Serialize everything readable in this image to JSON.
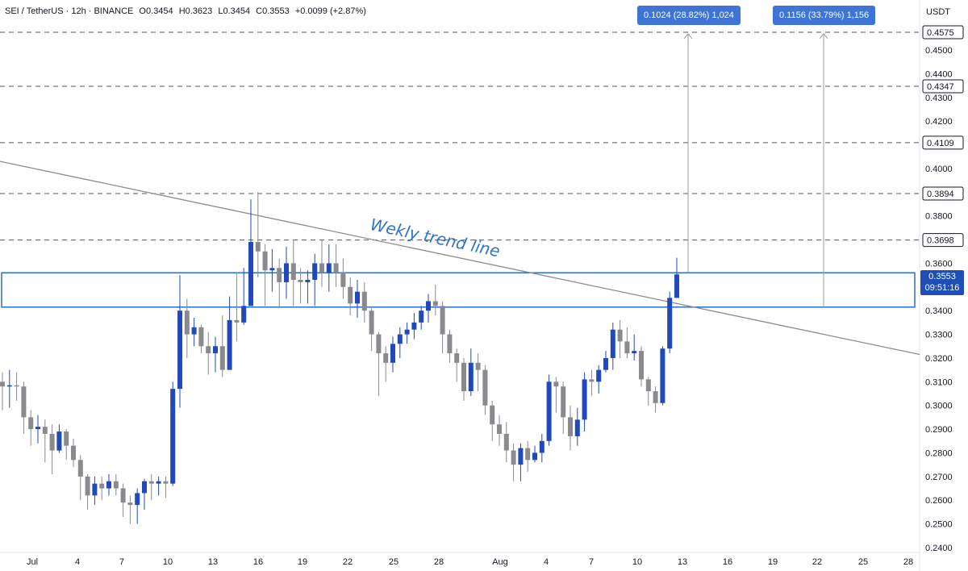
{
  "header": {
    "symbol": "SEI / TetherUS · 12h · BINANCE",
    "open": "O0.3454",
    "high": "H0.3623",
    "low": "L0.3454",
    "close": "C0.3553",
    "change": "+0.0099 (+2.87%)"
  },
  "currency": "USDT",
  "callouts": [
    {
      "text": "0.1024 (28.82%) 1,024"
    },
    {
      "text": "0.1156 (33.79%) 1,156"
    }
  ],
  "annotation": "Wekly trend line",
  "current_price": {
    "price": "0.3553",
    "countdown": "09:51:16"
  },
  "colors": {
    "up": "#2149b8",
    "down": "#8a8a8e",
    "box": "#2a6fc9",
    "trend": "#8c8c8c",
    "dash": "#555555"
  },
  "chart_data": {
    "type": "candlestick",
    "ylim": [
      0.24,
      0.463
    ],
    "y_ticks": [
      0.24,
      0.25,
      0.26,
      0.27,
      0.28,
      0.29,
      0.3,
      0.31,
      0.32,
      0.33,
      0.34,
      0.36,
      0.37,
      0.38,
      0.39,
      0.4,
      0.42,
      0.43,
      0.44,
      0.45
    ],
    "y_tick_labels": [
      "0.2400",
      "0.2500",
      "0.2600",
      "0.2700",
      "0.2800",
      "0.2900",
      "0.3000",
      "0.3100",
      "0.3200",
      "0.3300",
      "0.3400",
      "0.3600",
      "0.3700",
      "0.3800",
      "0.3900",
      "0.4000",
      "0.4200",
      "0.4300",
      "0.4400",
      "0.4500"
    ],
    "x_labels": [
      "Jul",
      "4",
      "7",
      "10",
      "13",
      "16",
      "19",
      "22",
      "25",
      "28",
      "Aug",
      "4",
      "7",
      "10",
      "13",
      "16",
      "19",
      "22",
      "25",
      "28"
    ],
    "levels": [
      0.4575,
      0.4347,
      0.4109,
      0.3894,
      0.3698
    ],
    "level_labels": [
      "0.4575",
      "0.4347",
      "0.4109",
      "0.3894",
      "0.3698"
    ],
    "zone": [
      0.3415,
      0.3553
    ],
    "trend_line": {
      "start_value": 0.403,
      "end_value": 0.3215
    },
    "candles": [
      [
        0.31,
        0.308,
        0.314,
        0.298
      ],
      [
        0.308,
        0.3085,
        0.315,
        0.299
      ],
      [
        0.3085,
        0.308,
        0.314,
        0.302
      ],
      [
        0.308,
        0.295,
        0.31,
        0.288
      ],
      [
        0.295,
        0.29,
        0.298,
        0.283
      ],
      [
        0.29,
        0.291,
        0.296,
        0.284
      ],
      [
        0.291,
        0.288,
        0.294,
        0.276
      ],
      [
        0.288,
        0.281,
        0.292,
        0.271
      ],
      [
        0.281,
        0.289,
        0.292,
        0.28
      ],
      [
        0.289,
        0.283,
        0.29,
        0.277
      ],
      [
        0.283,
        0.277,
        0.286,
        0.274
      ],
      [
        0.277,
        0.27,
        0.279,
        0.26
      ],
      [
        0.27,
        0.262,
        0.271,
        0.256
      ],
      [
        0.262,
        0.267,
        0.27,
        0.258
      ],
      [
        0.267,
        0.265,
        0.27,
        0.26
      ],
      [
        0.265,
        0.268,
        0.271,
        0.262
      ],
      [
        0.268,
        0.265,
        0.271,
        0.262
      ],
      [
        0.265,
        0.259,
        0.267,
        0.253
      ],
      [
        0.259,
        0.258,
        0.262,
        0.25
      ],
      [
        0.258,
        0.263,
        0.265,
        0.25
      ],
      [
        0.263,
        0.268,
        0.269,
        0.256
      ],
      [
        0.268,
        0.267,
        0.271,
        0.26
      ],
      [
        0.267,
        0.268,
        0.27,
        0.262
      ],
      [
        0.268,
        0.267,
        0.27,
        0.261
      ],
      [
        0.267,
        0.307,
        0.31,
        0.266
      ],
      [
        0.307,
        0.34,
        0.355,
        0.299
      ],
      [
        0.34,
        0.33,
        0.345,
        0.32
      ],
      [
        0.33,
        0.333,
        0.337,
        0.325
      ],
      [
        0.333,
        0.325,
        0.334,
        0.322
      ],
      [
        0.325,
        0.322,
        0.331,
        0.313
      ],
      [
        0.322,
        0.325,
        0.329,
        0.314
      ],
      [
        0.325,
        0.315,
        0.338,
        0.312
      ],
      [
        0.315,
        0.336,
        0.346,
        0.315
      ],
      [
        0.336,
        0.335,
        0.356,
        0.327
      ],
      [
        0.335,
        0.342,
        0.358,
        0.334
      ],
      [
        0.342,
        0.369,
        0.387,
        0.342
      ],
      [
        0.369,
        0.365,
        0.39,
        0.354
      ],
      [
        0.365,
        0.357,
        0.368,
        0.342
      ],
      [
        0.357,
        0.358,
        0.366,
        0.348
      ],
      [
        0.358,
        0.352,
        0.362,
        0.341
      ],
      [
        0.352,
        0.36,
        0.367,
        0.345
      ],
      [
        0.36,
        0.353,
        0.37,
        0.342
      ],
      [
        0.353,
        0.352,
        0.358,
        0.343
      ],
      [
        0.352,
        0.353,
        0.357,
        0.343
      ],
      [
        0.353,
        0.36,
        0.364,
        0.342
      ],
      [
        0.36,
        0.356,
        0.37,
        0.35
      ],
      [
        0.356,
        0.36,
        0.368,
        0.348
      ],
      [
        0.36,
        0.356,
        0.368,
        0.35
      ],
      [
        0.356,
        0.35,
        0.362,
        0.345
      ],
      [
        0.35,
        0.343,
        0.354,
        0.338
      ],
      [
        0.343,
        0.348,
        0.353,
        0.337
      ],
      [
        0.348,
        0.34,
        0.352,
        0.335
      ],
      [
        0.34,
        0.33,
        0.341,
        0.323
      ],
      [
        0.33,
        0.322,
        0.331,
        0.304
      ],
      [
        0.322,
        0.318,
        0.325,
        0.31
      ],
      [
        0.318,
        0.326,
        0.329,
        0.314
      ],
      [
        0.326,
        0.33,
        0.333,
        0.32
      ],
      [
        0.33,
        0.332,
        0.335,
        0.326
      ],
      [
        0.332,
        0.335,
        0.339,
        0.328
      ],
      [
        0.335,
        0.34,
        0.342,
        0.332
      ],
      [
        0.34,
        0.344,
        0.347,
        0.335
      ],
      [
        0.344,
        0.342,
        0.351,
        0.338
      ],
      [
        0.342,
        0.33,
        0.344,
        0.322
      ],
      [
        0.33,
        0.322,
        0.332,
        0.318
      ],
      [
        0.322,
        0.318,
        0.324,
        0.31
      ],
      [
        0.318,
        0.306,
        0.32,
        0.302
      ],
      [
        0.306,
        0.318,
        0.324,
        0.304
      ],
      [
        0.318,
        0.315,
        0.322,
        0.306
      ],
      [
        0.315,
        0.3,
        0.317,
        0.296
      ],
      [
        0.3,
        0.292,
        0.302,
        0.285
      ],
      [
        0.292,
        0.288,
        0.296,
        0.283
      ],
      [
        0.288,
        0.281,
        0.293,
        0.276
      ],
      [
        0.281,
        0.275,
        0.284,
        0.268
      ],
      [
        0.275,
        0.282,
        0.284,
        0.268
      ],
      [
        0.282,
        0.277,
        0.285,
        0.272
      ],
      [
        0.277,
        0.28,
        0.283,
        0.276
      ],
      [
        0.28,
        0.285,
        0.288,
        0.276
      ],
      [
        0.285,
        0.31,
        0.313,
        0.283
      ],
      [
        0.31,
        0.308,
        0.312,
        0.297
      ],
      [
        0.308,
        0.295,
        0.31,
        0.288
      ],
      [
        0.295,
        0.287,
        0.3,
        0.281
      ],
      [
        0.287,
        0.294,
        0.299,
        0.283
      ],
      [
        0.294,
        0.311,
        0.314,
        0.289
      ],
      [
        0.311,
        0.31,
        0.315,
        0.304
      ],
      [
        0.31,
        0.315,
        0.317,
        0.305
      ],
      [
        0.315,
        0.32,
        0.323,
        0.314
      ],
      [
        0.32,
        0.332,
        0.335,
        0.315
      ],
      [
        0.332,
        0.327,
        0.336,
        0.32
      ],
      [
        0.327,
        0.322,
        0.333,
        0.32
      ],
      [
        0.322,
        0.323,
        0.33,
        0.319
      ],
      [
        0.323,
        0.311,
        0.325,
        0.308
      ],
      [
        0.311,
        0.306,
        0.312,
        0.3
      ],
      [
        0.306,
        0.301,
        0.308,
        0.297
      ],
      [
        0.301,
        0.324,
        0.325,
        0.3
      ],
      [
        0.324,
        0.3454,
        0.348,
        0.322
      ],
      [
        0.3454,
        0.3553,
        0.3623,
        0.3454
      ]
    ]
  },
  "x_axis_labels": [
    {
      "t": "Jul"
    },
    {
      "t": "4"
    },
    {
      "t": "7"
    },
    {
      "t": "10"
    },
    {
      "t": "13"
    },
    {
      "t": "16"
    },
    {
      "t": "19"
    },
    {
      "t": "22"
    },
    {
      "t": "25"
    },
    {
      "t": "28"
    },
    {
      "t": "Aug"
    },
    {
      "t": "4"
    },
    {
      "t": "7"
    },
    {
      "t": "10"
    },
    {
      "t": "13"
    },
    {
      "t": "16"
    },
    {
      "t": "19"
    },
    {
      "t": "22"
    },
    {
      "t": "25"
    },
    {
      "t": "28"
    }
  ]
}
